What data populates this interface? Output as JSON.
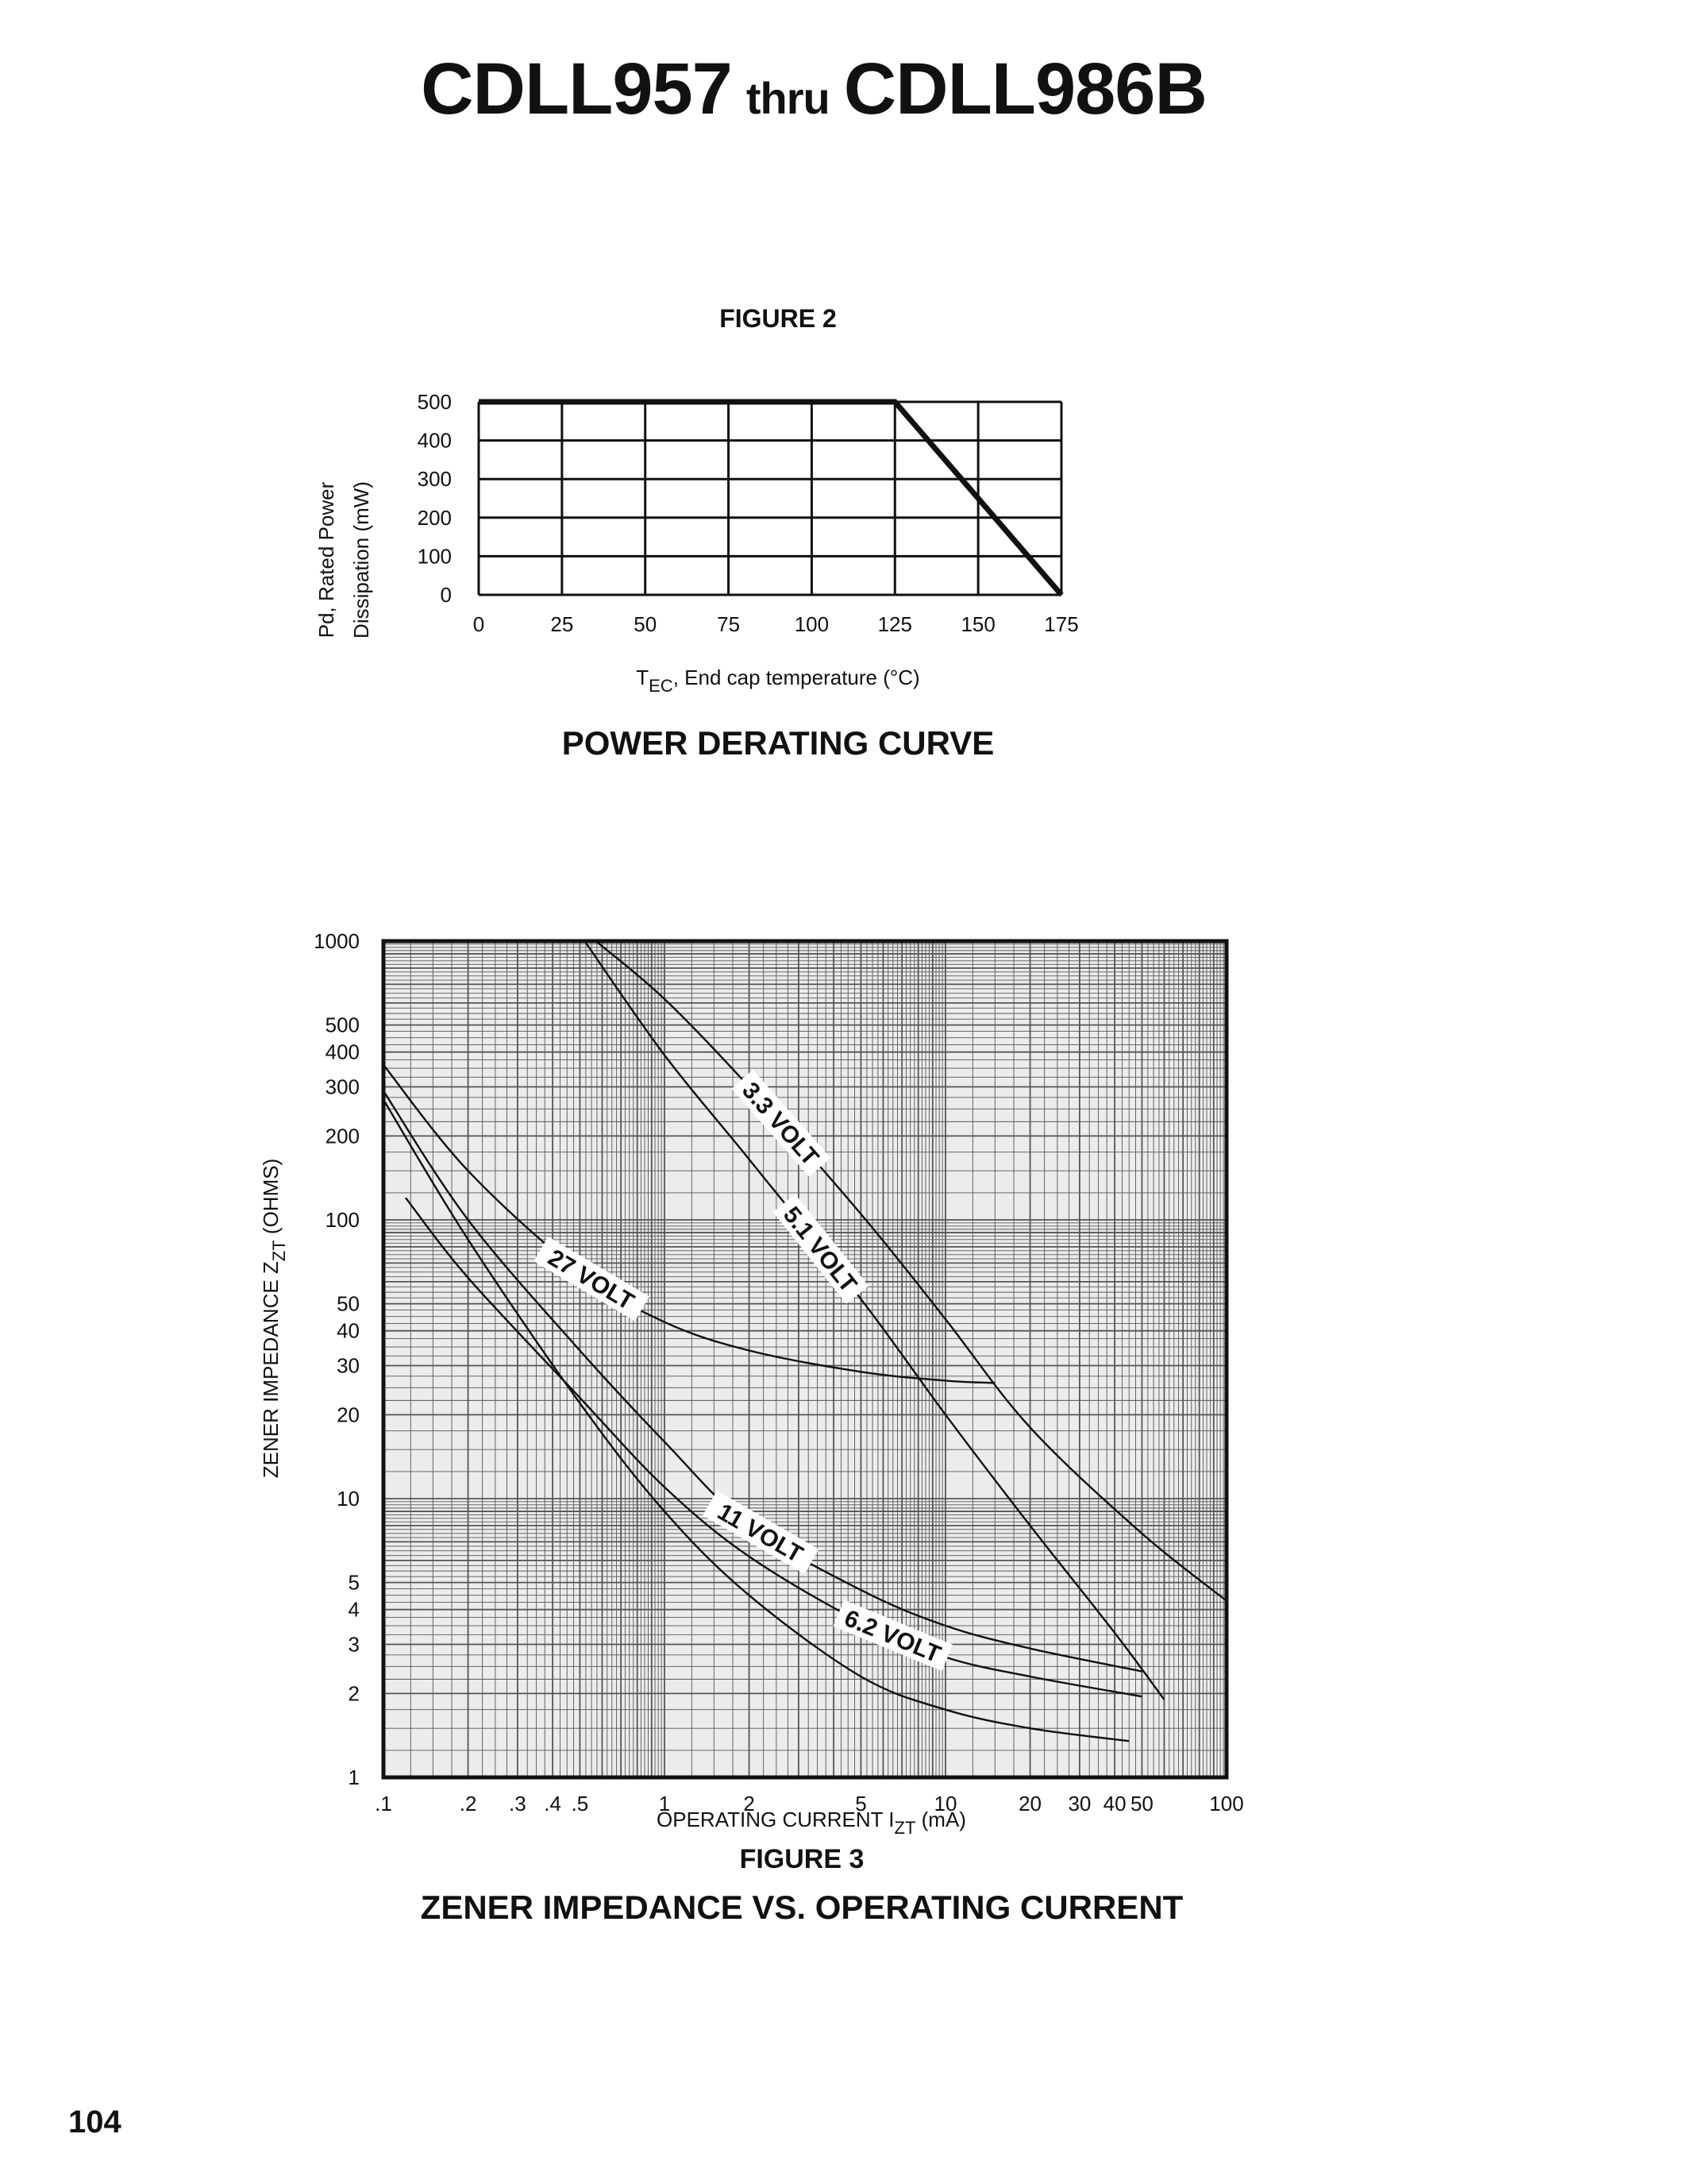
{
  "page": {
    "title_left": "CDLL957",
    "title_mid": "thru",
    "title_right": "CDLL986B",
    "page_number": "104"
  },
  "figure2": {
    "number": "FIGURE 2",
    "caption": "POWER DERATING CURVE",
    "ylabel_line1": "Pd, Rated Power",
    "ylabel_line2": "Dissipation (mW)",
    "xlabel_main": "T",
    "xlabel_sub": "EC",
    "xlabel_rest": ", End cap temperature (°C)"
  },
  "figure3": {
    "number": "FIGURE 3",
    "caption": "ZENER IMPEDANCE VS. OPERATING CURRENT",
    "ylabel_main": "ZENER IMPEDANCE Z",
    "ylabel_sub": "ZT",
    "ylabel_rest": " (OHMS)",
    "xlabel_main": "OPERATING CURRENT I",
    "xlabel_sub": "ZT",
    "xlabel_rest": " (mA)"
  },
  "chart_data": [
    {
      "type": "line",
      "title": "POWER DERATING CURVE",
      "xlabel": "TEC , End cap temperature (°C)",
      "ylabel": "Pd, Rated Power Dissipation (mW)",
      "x_ticks": [
        "0",
        "25",
        "50",
        "75",
        "100",
        "125",
        "150",
        "175"
      ],
      "y_ticks": [
        "0",
        "100",
        "200",
        "300",
        "400",
        "500"
      ],
      "xlim": [
        0,
        175
      ],
      "ylim": [
        0,
        500
      ],
      "grid": true,
      "series": [
        {
          "x": [
            0,
            125,
            175
          ],
          "y": [
            500,
            500,
            0
          ]
        }
      ]
    },
    {
      "type": "line",
      "title": "ZENER IMPEDANCE VS. OPERATING CURRENT",
      "xlabel": "OPERATING CURRENT IZT (mA)",
      "ylabel": "ZENER IMPEDANCE ZZT (OHMS)",
      "xscale": "log",
      "yscale": "log",
      "xlim": [
        0.1,
        100
      ],
      "ylim": [
        1,
        1000
      ],
      "grid": true,
      "x_ticks": [
        {
          "v": 0.1,
          "label": ".1"
        },
        {
          "v": 0.2,
          "label": ".2"
        },
        {
          "v": 0.3,
          "label": ".3"
        },
        {
          "v": 0.4,
          "label": ".4"
        },
        {
          "v": 0.5,
          "label": ".5"
        },
        {
          "v": 1,
          "label": "1"
        },
        {
          "v": 2,
          "label": "2"
        },
        {
          "v": 5,
          "label": "5"
        },
        {
          "v": 10,
          "label": "10"
        },
        {
          "v": 20,
          "label": "20"
        },
        {
          "v": 30,
          "label": "30"
        },
        {
          "v": 40,
          "label": "40"
        },
        {
          "v": 50,
          "label": "50"
        },
        {
          "v": 100,
          "label": "100"
        }
      ],
      "y_ticks": [
        {
          "v": 1,
          "label": "1"
        },
        {
          "v": 2,
          "label": "2"
        },
        {
          "v": 3,
          "label": "3"
        },
        {
          "v": 4,
          "label": "4"
        },
        {
          "v": 5,
          "label": "5"
        },
        {
          "v": 10,
          "label": "10"
        },
        {
          "v": 20,
          "label": "20"
        },
        {
          "v": 30,
          "label": "30"
        },
        {
          "v": 40,
          "label": "40"
        },
        {
          "v": 50,
          "label": "50"
        },
        {
          "v": 100,
          "label": "100"
        },
        {
          "v": 200,
          "label": "200"
        },
        {
          "v": 300,
          "label": "300"
        },
        {
          "v": 400,
          "label": "400"
        },
        {
          "v": 500,
          "label": "500"
        },
        {
          "v": 1000,
          "label": "1000"
        }
      ],
      "series": [
        {
          "name": "3.3 VOLT",
          "x": [
            0.57,
            1.0,
            2.0,
            5.0,
            10,
            20,
            50,
            100
          ],
          "y": [
            1000,
            620,
            300,
            105,
            44,
            18,
            7.5,
            4.3
          ]
        },
        {
          "name": "5.1 VOLT",
          "x": [
            0.52,
            1.0,
            2.0,
            5.0,
            10,
            20,
            40,
            60
          ],
          "y": [
            1000,
            390,
            165,
            52,
            20,
            8,
            3.3,
            1.9
          ]
        },
        {
          "name": "27 VOLT",
          "x": [
            0.1,
            0.2,
            0.5,
            1.0,
            2.0,
            5.0,
            10,
            15
          ],
          "y": [
            360,
            150,
            65,
            43,
            34,
            28.5,
            26.5,
            26
          ]
        },
        {
          "name": "11 VOLT",
          "x": [
            0.1,
            0.2,
            0.5,
            1.0,
            2.0,
            5.0,
            10,
            20,
            50
          ],
          "y": [
            290,
            100,
            34,
            16,
            8,
            4.7,
            3.5,
            2.9,
            2.4
          ]
        },
        {
          "name": "6.2 VOLT",
          "x": [
            0.12,
            0.2,
            0.5,
            1.0,
            2.0,
            5.0,
            10,
            20,
            50
          ],
          "y": [
            120,
            62,
            23,
            11,
            6.2,
            3.6,
            2.7,
            2.3,
            1.95
          ]
        },
        {
          "x": [
            0.1,
            0.2,
            0.5,
            1.0,
            2.0,
            5.0,
            10,
            20,
            45
          ],
          "y": [
            270,
            85,
            22,
            9,
            4.5,
            2.3,
            1.75,
            1.5,
            1.35
          ]
        }
      ]
    }
  ]
}
